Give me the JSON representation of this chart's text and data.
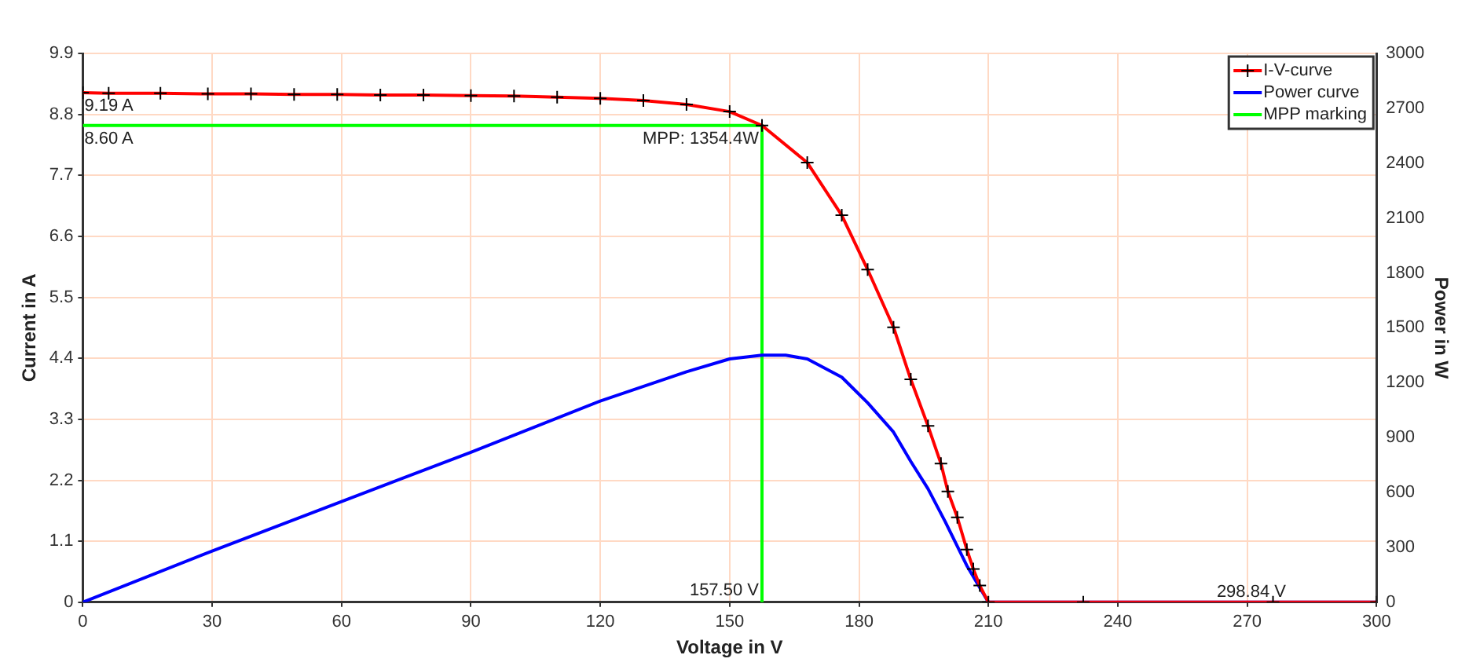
{
  "chart_data": {
    "type": "line",
    "xlabel": "Voltage in V",
    "ylabel": "Current in A",
    "y2label": "Power in W",
    "xlim": [
      0,
      300
    ],
    "xticks": [
      0,
      30,
      60,
      90,
      120,
      150,
      180,
      210,
      240,
      270,
      300
    ],
    "ylim": [
      0,
      9.9
    ],
    "yticks": [
      0,
      1.1,
      2.2,
      3.3,
      4.4,
      5.5,
      6.6,
      7.7,
      8.8,
      9.9
    ],
    "y2lim": [
      0,
      3000
    ],
    "y2ticks": [
      0,
      300,
      600,
      900,
      1200,
      1500,
      1800,
      2100,
      2400,
      2700,
      3000
    ],
    "grid": true,
    "legend": "top right",
    "line_style": "solid",
    "series": [
      {
        "name": "I-V-curve",
        "color": "#ff0000",
        "marker": "cross",
        "x": [
          0,
          6,
          18,
          29,
          39,
          49,
          59,
          69,
          79,
          90,
          100,
          110,
          120,
          130,
          140,
          150,
          157.5,
          168,
          176,
          182,
          188,
          192,
          196,
          199,
          200.6,
          202.8,
          205,
          206.5,
          208,
          210,
          232,
          276,
          300
        ],
        "values": [
          9.19,
          9.18,
          9.18,
          9.17,
          9.17,
          9.16,
          9.16,
          9.15,
          9.15,
          9.14,
          9.13,
          9.11,
          9.09,
          9.05,
          8.98,
          8.85,
          8.6,
          7.93,
          6.98,
          6.0,
          4.96,
          4.02,
          3.18,
          2.5,
          2.0,
          1.53,
          0.95,
          0.6,
          0.3,
          0,
          0,
          0,
          0
        ]
      },
      {
        "name": "Power curve",
        "color": "#0000ff",
        "axis": "y2",
        "x": [
          0,
          30,
          60,
          90,
          120,
          140,
          150,
          157.5,
          163,
          168,
          176,
          182,
          188,
          192,
          196,
          200,
          205,
          210,
          300
        ],
        "values": [
          0,
          280,
          550,
          820,
          1100,
          1260,
          1330,
          1350,
          1350,
          1330,
          1230,
          1090,
          930,
          770,
          620,
          440,
          200,
          0,
          0
        ]
      },
      {
        "name": "MPP marking",
        "color": "#00ff00",
        "x": [
          0,
          157.5,
          157.5
        ],
        "values": [
          8.6,
          8.6,
          0
        ]
      }
    ],
    "annotations": [
      {
        "text": "9.19 A",
        "y": 9.19
      },
      {
        "text": "8.60 A",
        "y": 8.6
      },
      {
        "text": "MPP: 1354.4W",
        "x": 157.5,
        "y": 8.6
      },
      {
        "text": "157.50 V",
        "x": 157.5,
        "y": 0
      },
      "298.84 V"
    ]
  }
}
